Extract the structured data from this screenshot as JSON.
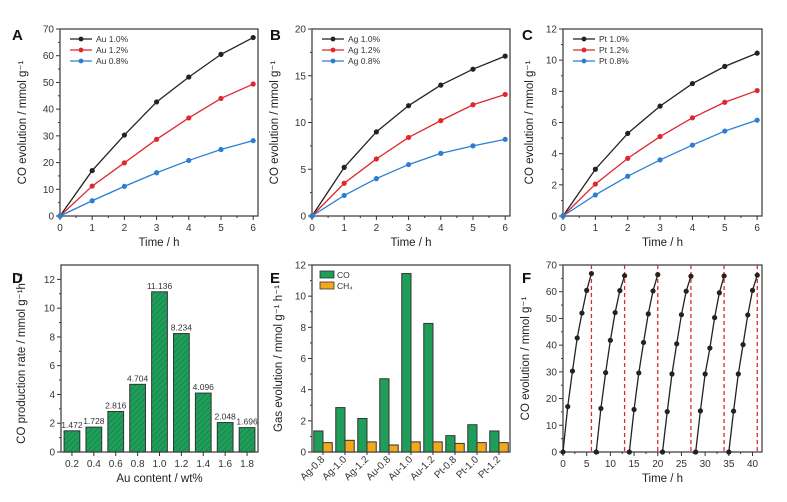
{
  "chart_data": [
    {
      "panel": "A",
      "type": "line",
      "x": [
        0,
        1,
        2,
        3,
        4,
        5,
        6
      ],
      "xlabel": "Time / h",
      "ylabel": "CO evolution / mmol g⁻¹",
      "xlim": [
        0,
        6.15
      ],
      "ylim": [
        0,
        70
      ],
      "xticks": [
        0,
        1,
        2,
        3,
        4,
        5,
        6
      ],
      "yticks": [
        0,
        10,
        20,
        30,
        40,
        50,
        60,
        70
      ],
      "legend": "top-left",
      "series": [
        {
          "name": "Au 1.0%",
          "color": "#222222",
          "values": [
            0,
            17,
            30.3,
            42.7,
            52,
            60.5,
            66.8
          ]
        },
        {
          "name": "Au 1.2%",
          "color": "#e0262e",
          "values": [
            0,
            11.2,
            19.9,
            28.7,
            36.7,
            44,
            49.4
          ]
        },
        {
          "name": "Au 0.8%",
          "color": "#2a7fd4",
          "values": [
            0,
            5.7,
            11.1,
            16.2,
            20.8,
            24.9,
            28.2
          ]
        }
      ]
    },
    {
      "panel": "B",
      "type": "line",
      "x": [
        0,
        1,
        2,
        3,
        4,
        5,
        6
      ],
      "xlabel": "Time / h",
      "ylabel": "CO evolution / mmol g⁻¹",
      "xlim": [
        0,
        6.15
      ],
      "ylim": [
        0,
        20
      ],
      "xticks": [
        0,
        1,
        2,
        3,
        4,
        5,
        6
      ],
      "yticks": [
        0,
        5,
        10,
        15,
        20
      ],
      "legend": "top-left",
      "series": [
        {
          "name": "Ag 1.0%",
          "color": "#222222",
          "values": [
            0,
            5.2,
            9,
            11.8,
            14,
            15.7,
            17.1
          ]
        },
        {
          "name": "Ag 1.2%",
          "color": "#e0262e",
          "values": [
            0,
            3.5,
            6.1,
            8.4,
            10.2,
            11.9,
            13
          ]
        },
        {
          "name": "Ag 0.8%",
          "color": "#2a7fd4",
          "values": [
            0,
            2.2,
            4,
            5.5,
            6.7,
            7.5,
            8.2
          ]
        }
      ]
    },
    {
      "panel": "C",
      "type": "line",
      "x": [
        0,
        1,
        2,
        3,
        4,
        5,
        6
      ],
      "xlabel": "Time / h",
      "ylabel": "CO evolution / mmol g⁻¹",
      "xlim": [
        0,
        6.15
      ],
      "ylim": [
        0,
        12
      ],
      "xticks": [
        0,
        1,
        2,
        3,
        4,
        5,
        6
      ],
      "yticks": [
        0,
        2,
        4,
        6,
        8,
        10,
        12
      ],
      "legend": "top-left",
      "series": [
        {
          "name": "Pt 1.0%",
          "color": "#222222",
          "values": [
            0,
            3,
            5.3,
            7.05,
            8.5,
            9.6,
            10.45
          ]
        },
        {
          "name": "Pt 1.2%",
          "color": "#e0262e",
          "values": [
            0,
            2.05,
            3.7,
            5.1,
            6.3,
            7.3,
            8.05
          ]
        },
        {
          "name": "Pt 0.8%",
          "color": "#2a7fd4",
          "values": [
            0,
            1.35,
            2.55,
            3.6,
            4.55,
            5.45,
            6.15
          ]
        }
      ]
    },
    {
      "panel": "D",
      "type": "bar",
      "categories": [
        "0.2",
        "0.4",
        "0.6",
        "0.8",
        "1.0",
        "1.2",
        "1.4",
        "1.6",
        "1.8"
      ],
      "values": [
        1.472,
        1.728,
        2.816,
        4.704,
        11.136,
        8.234,
        4.096,
        2.048,
        1.696
      ],
      "data_labels": [
        "1.472",
        "1.728",
        "2.816",
        "4.704",
        "11.136",
        "8.234",
        "4.096",
        "2.048",
        "1.696"
      ],
      "color": "#1f9e5a",
      "xlabel": "Au content / wt%",
      "ylabel": "CO production rate / mmol g⁻¹h⁻¹",
      "ylim": [
        0,
        13
      ],
      "yticks": [
        0,
        2,
        4,
        6,
        8,
        10,
        12
      ]
    },
    {
      "panel": "E",
      "type": "bar",
      "categories": [
        "Ag-0.8",
        "Ag-1.0",
        "Ag-1.2",
        "Au-0.8",
        "Au-1.0",
        "Au-1.2",
        "Pt-0.8",
        "Pt-1.0",
        "Pt-1.2"
      ],
      "series": [
        {
          "name": "CO",
          "color": "#1f9e5a",
          "values": [
            1.35,
            2.85,
            2.15,
            4.7,
            11.45,
            8.25,
            1.05,
            1.75,
            1.35
          ]
        },
        {
          "name": "CH₄",
          "color": "#f2a81d",
          "values": [
            0.6,
            0.75,
            0.65,
            0.45,
            0.65,
            0.65,
            0.55,
            0.6,
            0.6
          ]
        }
      ],
      "xlabel": "",
      "ylabel": "Gas evolution / mmol g⁻¹ h⁻¹",
      "ylim": [
        0,
        12
      ],
      "yticks": [
        0,
        2,
        4,
        6,
        8,
        10,
        12
      ],
      "legend": "top-left"
    },
    {
      "panel": "F",
      "type": "line",
      "xlabel": "Time / h",
      "ylabel": "CO evolution / mmol g⁻¹",
      "xlim": [
        0,
        42
      ],
      "ylim": [
        0,
        70
      ],
      "xticks": [
        0,
        5,
        10,
        15,
        20,
        25,
        30,
        35,
        40
      ],
      "yticks": [
        0,
        10,
        20,
        30,
        40,
        50,
        60,
        70
      ],
      "color": "#222222",
      "cycle_markers": {
        "color": "#e0262e",
        "x": [
          6,
          13,
          20,
          27,
          34,
          41
        ]
      },
      "cycles": [
        {
          "x": [
            0,
            1,
            2,
            3,
            4,
            5,
            6
          ],
          "values": [
            0,
            17,
            30.3,
            42.7,
            52,
            60.5,
            66.8
          ]
        },
        {
          "x": [
            7,
            8,
            9,
            10,
            11,
            12,
            13
          ],
          "values": [
            0,
            16.3,
            29.7,
            41.8,
            52.2,
            60.4,
            66
          ]
        },
        {
          "x": [
            14,
            15,
            16,
            17,
            18,
            19,
            20
          ],
          "values": [
            0,
            15.9,
            29.6,
            41,
            51.7,
            60.3,
            66.4
          ]
        },
        {
          "x": [
            21,
            22,
            23,
            24,
            25,
            26,
            27
          ],
          "values": [
            0,
            15.1,
            29.2,
            40.5,
            51.4,
            60.2,
            65.8
          ]
        },
        {
          "x": [
            28,
            29,
            30,
            31,
            32,
            33,
            34
          ],
          "values": [
            0,
            15.4,
            29.2,
            38.9,
            50.3,
            59.6,
            65.9
          ]
        },
        {
          "x": [
            35,
            36,
            37,
            38,
            39,
            40,
            41
          ],
          "values": [
            0,
            15.3,
            29.2,
            40.2,
            51.3,
            60.5,
            66.2
          ]
        }
      ]
    }
  ]
}
